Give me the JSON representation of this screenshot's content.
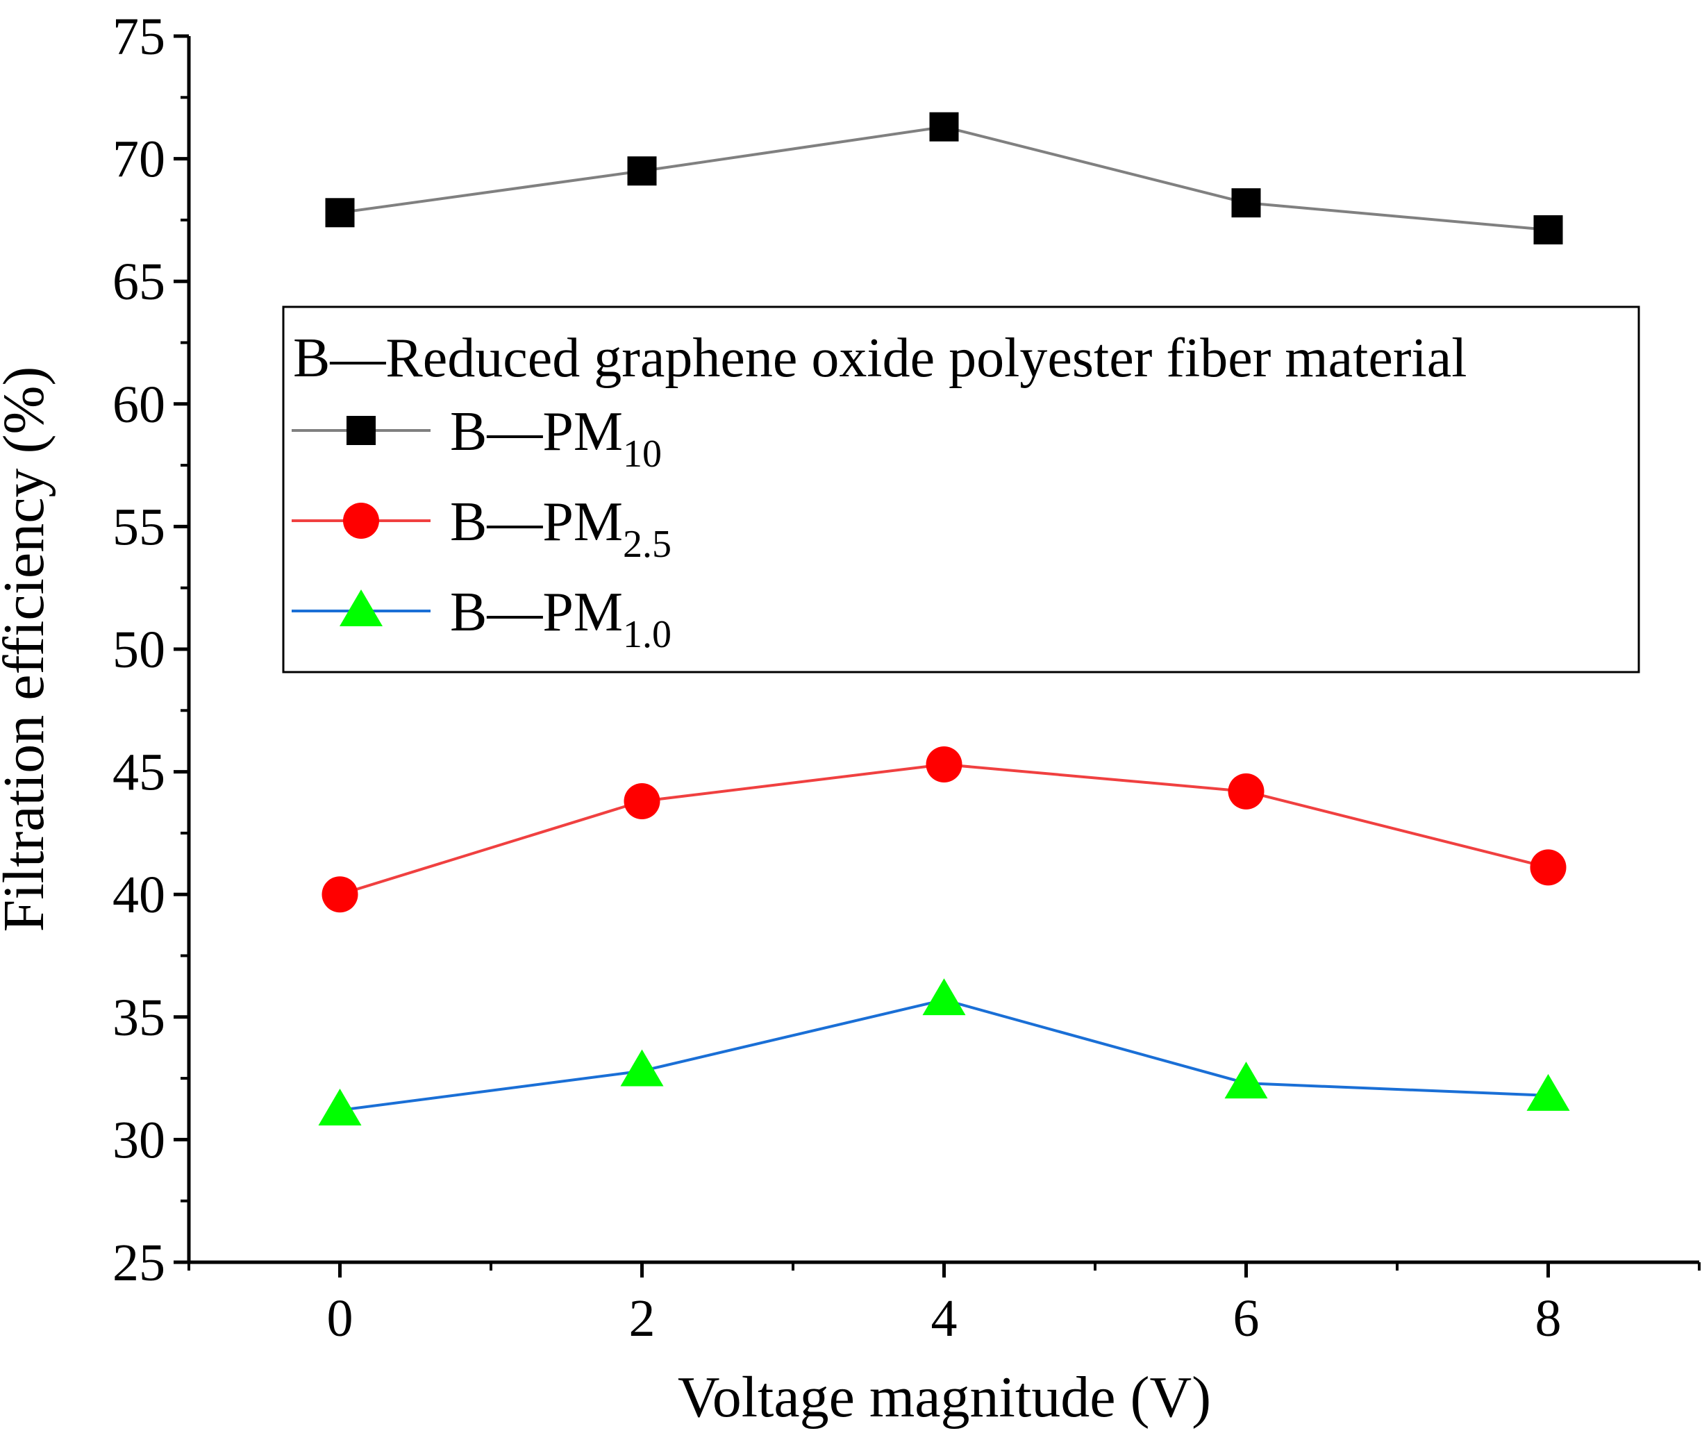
{
  "chart_data": {
    "type": "line",
    "title": "",
    "xlabel": "Voltage magnitude (V)",
    "ylabel": "Filtration efficiency (%)",
    "xlim": [
      -1,
      9
    ],
    "ylim": [
      25,
      75
    ],
    "xticks": [
      0,
      2,
      4,
      6,
      8
    ],
    "yticks": [
      25,
      30,
      35,
      40,
      45,
      50,
      55,
      60,
      65,
      70,
      75
    ],
    "x": [
      0,
      2,
      4,
      6,
      8
    ],
    "grid": false,
    "legend_position": "upper-middle",
    "legend_title": "B—Reduced graphene oxide polyester fiber material",
    "series": [
      {
        "name": "B—PM10",
        "legend_main": "B—PM",
        "legend_sub": "10",
        "marker": "square",
        "line_color": "#808080",
        "marker_color": "#000000",
        "values": [
          67.8,
          69.5,
          71.3,
          68.2,
          67.1
        ]
      },
      {
        "name": "B—PM2.5",
        "legend_main": "B—PM",
        "legend_sub": "2.5",
        "marker": "circle",
        "line_color": "#f04040",
        "marker_color": "#ff0000",
        "values": [
          40.0,
          43.8,
          45.3,
          44.2,
          41.1
        ]
      },
      {
        "name": "B—PM1.0",
        "legend_main": "B—PM",
        "legend_sub": "1.0",
        "marker": "triangle",
        "line_color": "#1a6fd6",
        "marker_color": "#00ff00",
        "values": [
          31.2,
          32.8,
          35.7,
          32.3,
          31.8
        ]
      }
    ]
  }
}
